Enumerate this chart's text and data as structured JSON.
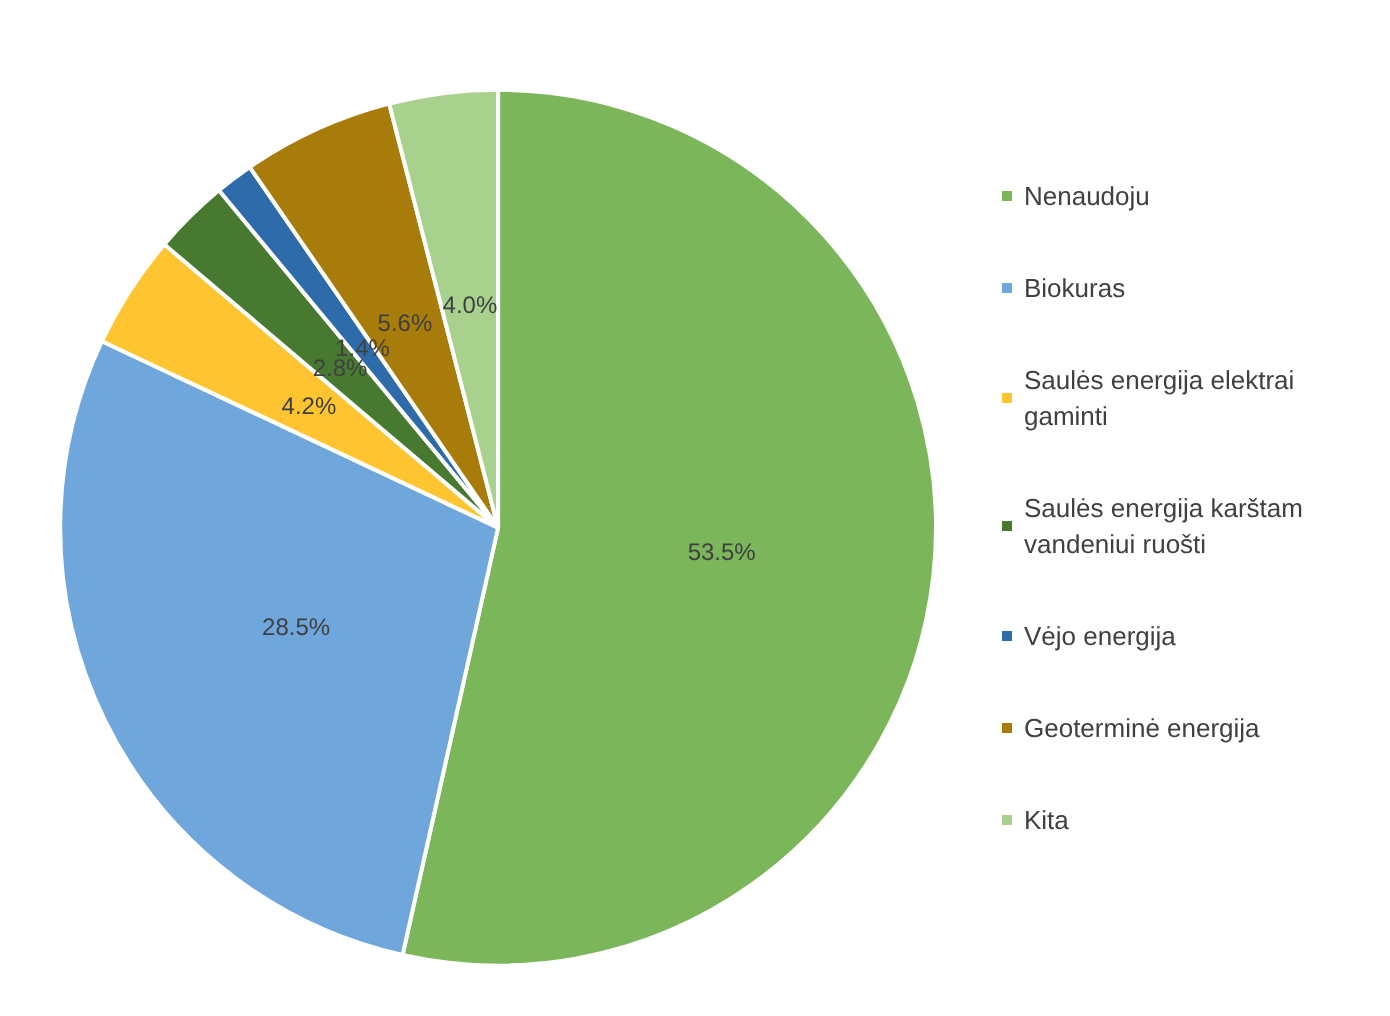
{
  "chart_data": {
    "type": "pie",
    "categories": [
      "Nenaudoju",
      "Biokuras",
      "Saulės energija elektrai gaminti",
      "Saulės energija karštam vandeniui ruošti",
      "Vėjo energija",
      "Geoterminė energija",
      "Kita"
    ],
    "values": [
      53.5,
      28.5,
      4.2,
      2.8,
      1.4,
      5.6,
      4.0
    ],
    "colors": [
      "#7cb65a",
      "#6fa6dc",
      "#ffc531",
      "#477a30",
      "#2e6bab",
      "#a87c0a",
      "#a9d18e"
    ],
    "value_labels": [
      "53.5%",
      "28.5%",
      "4.2%",
      "2.8%",
      "1.4%",
      "5.6%",
      "4.0%"
    ],
    "legend": "right"
  }
}
